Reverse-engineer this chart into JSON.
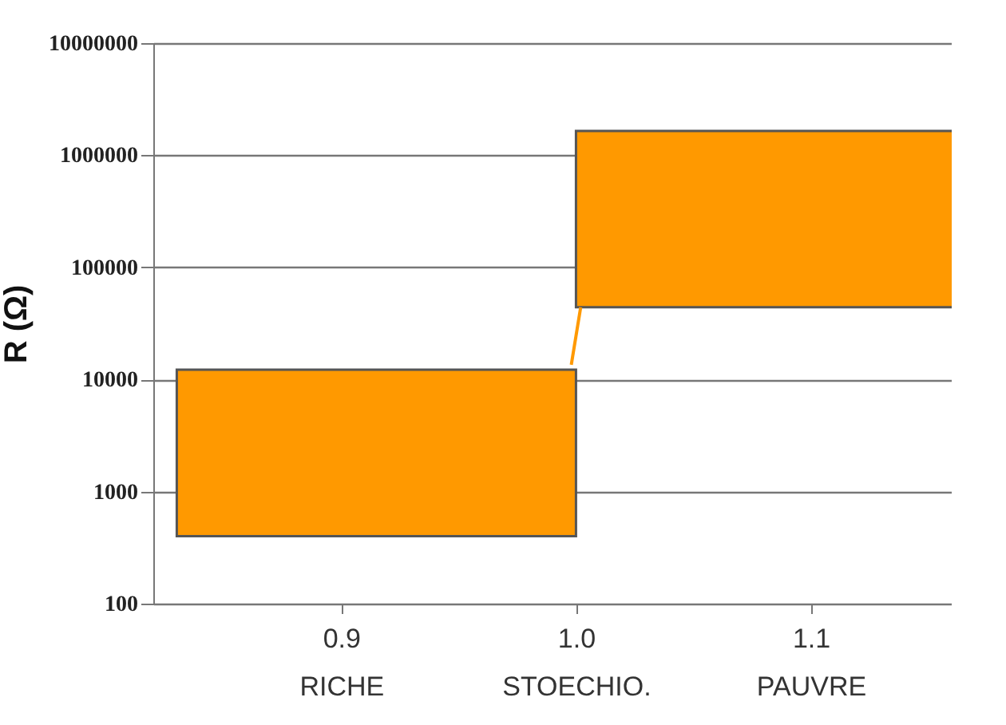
{
  "chart_data": {
    "type": "bar",
    "ylabel": "R (Ω)",
    "log": true,
    "grid": "y",
    "x": [
      0.915,
      1.085
    ],
    "base": [
      400,
      44000
    ],
    "values": [
      11800,
      1600000
    ],
    "color": "#ff9900",
    "series": [
      {
        "type": "line",
        "x": [
          0.998,
          1.002
        ],
        "values": [
          13500,
          44000
        ],
        "color": "#ff9900"
      }
    ],
    "xlim": [
      0.82,
      1.16
    ],
    "xticks": [
      {
        "value": 0.9,
        "label": "0.9\nRICHE"
      },
      {
        "value": 1.0,
        "label": "1.0\nSTOECHIO."
      },
      {
        "value": 1.1,
        "label": "1.1\nPAUVRE"
      }
    ],
    "ylim": [
      100,
      10000000
    ],
    "yticks": [
      100,
      1000,
      10000,
      100000,
      1000000,
      10000000
    ]
  }
}
